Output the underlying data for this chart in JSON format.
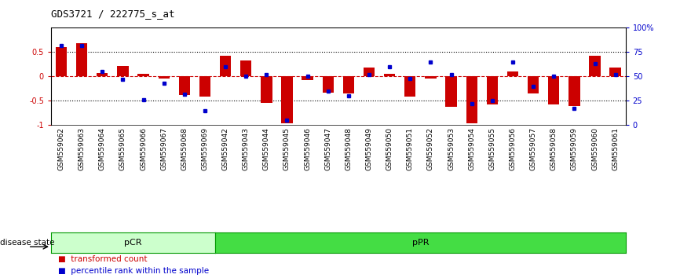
{
  "title": "GDS3721 / 222775_s_at",
  "samples": [
    "GSM559062",
    "GSM559063",
    "GSM559064",
    "GSM559065",
    "GSM559066",
    "GSM559067",
    "GSM559068",
    "GSM559069",
    "GSM559042",
    "GSM559043",
    "GSM559044",
    "GSM559045",
    "GSM559046",
    "GSM559047",
    "GSM559048",
    "GSM559049",
    "GSM559050",
    "GSM559051",
    "GSM559052",
    "GSM559053",
    "GSM559054",
    "GSM559055",
    "GSM559056",
    "GSM559057",
    "GSM559058",
    "GSM559059",
    "GSM559060",
    "GSM559061"
  ],
  "bar_values": [
    0.6,
    0.68,
    0.07,
    0.22,
    0.05,
    -0.05,
    -0.38,
    -0.42,
    0.43,
    0.33,
    -0.55,
    -0.97,
    -0.08,
    -0.33,
    -0.35,
    0.18,
    0.05,
    -0.42,
    -0.04,
    -0.62,
    -0.97,
    -0.58,
    0.11,
    -0.35,
    -0.57,
    -0.6,
    0.42,
    0.18
  ],
  "dot_values": [
    0.82,
    0.82,
    0.55,
    0.47,
    0.26,
    0.43,
    0.32,
    0.15,
    0.6,
    0.5,
    0.52,
    0.05,
    0.5,
    0.35,
    0.3,
    0.52,
    0.6,
    0.48,
    0.65,
    0.52,
    0.22,
    0.25,
    0.65,
    0.4,
    0.5,
    0.17,
    0.63,
    0.52
  ],
  "pcr_count": 8,
  "ppr_count": 20,
  "bar_color": "#cc0000",
  "dot_color": "#0000cc",
  "pcr_color": "#ccffcc",
  "ppr_color": "#44dd44",
  "background_color": "#ffffff",
  "ylim": [
    -1.0,
    1.0
  ],
  "yticks_left": [
    -1.0,
    -0.5,
    0.0,
    0.5
  ],
  "ytick_labels_left": [
    "-1",
    "-0.5",
    "0",
    "0.5"
  ],
  "legend_items": [
    "transformed count",
    "percentile rank within the sample"
  ],
  "legend_colors": [
    "#cc0000",
    "#0000cc"
  ],
  "disease_state_label": "disease state",
  "pcr_label": "pCR",
  "ppr_label": "pPR"
}
